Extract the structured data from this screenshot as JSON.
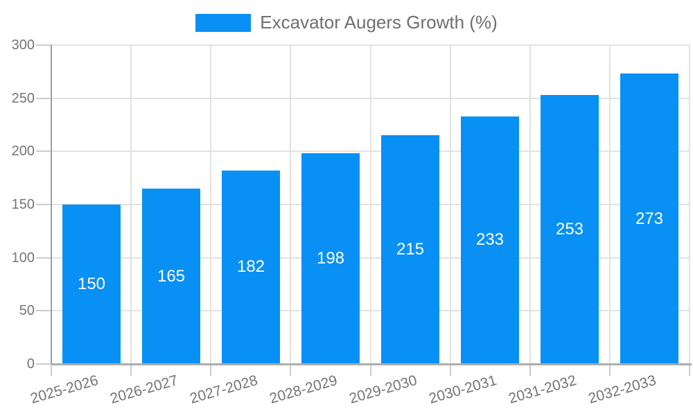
{
  "legend": {
    "label": "Excavator Augers Growth (%)"
  },
  "chart_data": {
    "type": "bar",
    "title": "",
    "series_name": "Excavator Augers Growth (%)",
    "categories": [
      "2025-2026",
      "2026-2027",
      "2027-2028",
      "2028-2029",
      "2029-2030",
      "2030-2031",
      "2031-2032",
      "2032-2033"
    ],
    "values": [
      150,
      165,
      182,
      198,
      215,
      233,
      253,
      273
    ],
    "xlabel": "",
    "ylabel": "",
    "ylim": [
      0,
      300
    ],
    "yticks": [
      0,
      50,
      100,
      150,
      200,
      250,
      300
    ],
    "grid": true,
    "legend_position": "top",
    "x_label_rotation_deg": -16,
    "value_labels": "inside-center",
    "colors": {
      "bar": "#0890F5",
      "bar_value_text": "#FFFFFF",
      "axis_text": "#757575",
      "legend_text": "#6F6F6F",
      "gridline": "#E2E2E2",
      "y_axis_line": "#9C9C9C",
      "x_axis_line": "#ACACAC",
      "tick": "#CCCCCC",
      "background": "#FFFFFF"
    }
  }
}
